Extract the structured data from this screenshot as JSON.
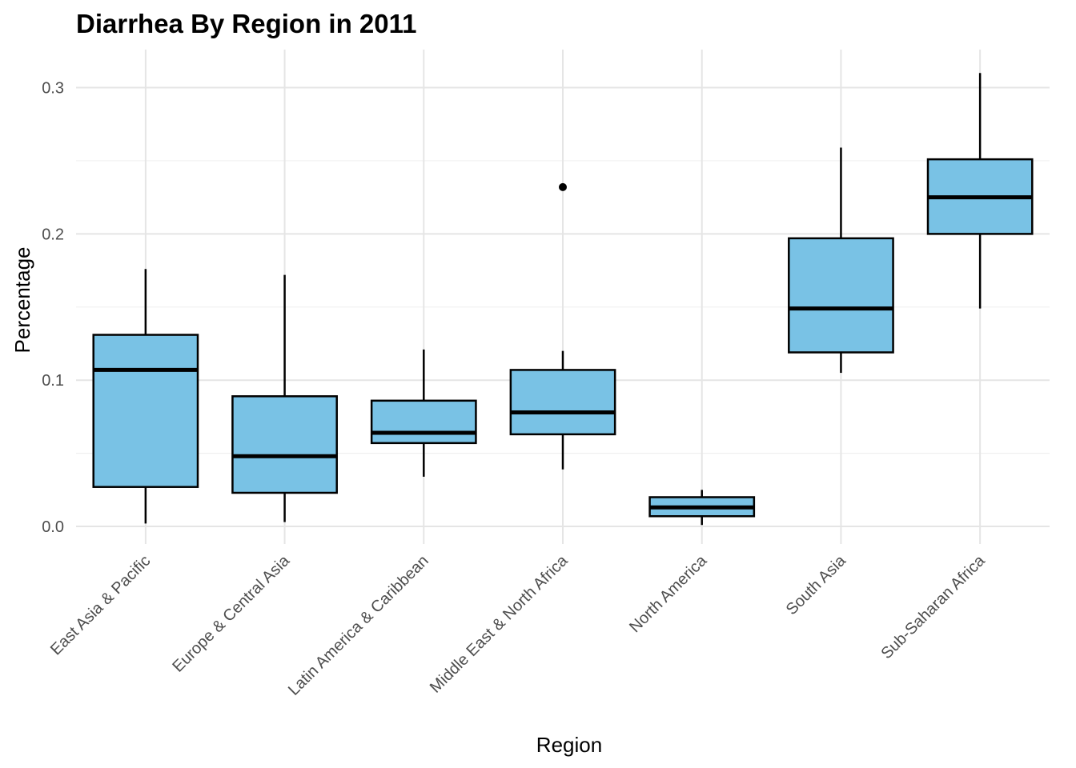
{
  "chart_data": {
    "type": "boxplot",
    "title": "Diarrhea By Region in 2011",
    "xlabel": "Region",
    "ylabel": "Percentage",
    "ylim": [
      -0.012,
      0.326
    ],
    "yticks": [
      0.0,
      0.1,
      0.2,
      0.3
    ],
    "ytick_labels": [
      "0.0",
      "0.1",
      "0.2",
      "0.3"
    ],
    "y_minor_ticks": [
      0.05,
      0.15,
      0.25
    ],
    "grid": true,
    "legend": "none",
    "categories": [
      "East Asia & Pacific",
      "Europe & Central Asia",
      "Latin America & Caribbean",
      "Middle East & North Africa",
      "North America",
      "South Asia",
      "Sub-Saharan Africa"
    ],
    "boxes": [
      {
        "category": "East Asia & Pacific",
        "lower_whisker": 0.002,
        "q1": 0.027,
        "median": 0.107,
        "q3": 0.131,
        "upper_whisker": 0.176,
        "outliers": []
      },
      {
        "category": "Europe & Central Asia",
        "lower_whisker": 0.003,
        "q1": 0.023,
        "median": 0.048,
        "q3": 0.089,
        "upper_whisker": 0.172,
        "outliers": []
      },
      {
        "category": "Latin America & Caribbean",
        "lower_whisker": 0.034,
        "q1": 0.057,
        "median": 0.064,
        "q3": 0.086,
        "upper_whisker": 0.121,
        "outliers": []
      },
      {
        "category": "Middle East & North Africa",
        "lower_whisker": 0.039,
        "q1": 0.063,
        "median": 0.078,
        "q3": 0.107,
        "upper_whisker": 0.12,
        "outliers": [
          0.232
        ]
      },
      {
        "category": "North America",
        "lower_whisker": 0.001,
        "q1": 0.007,
        "median": 0.013,
        "q3": 0.02,
        "upper_whisker": 0.025,
        "outliers": []
      },
      {
        "category": "South Asia",
        "lower_whisker": 0.105,
        "q1": 0.119,
        "median": 0.149,
        "q3": 0.197,
        "upper_whisker": 0.259,
        "outliers": []
      },
      {
        "category": "Sub-Saharan Africa",
        "lower_whisker": 0.149,
        "q1": 0.2,
        "median": 0.225,
        "q3": 0.251,
        "upper_whisker": 0.31,
        "outliers": []
      }
    ],
    "colors": {
      "box_fill": "#79c2e5",
      "box_stroke": "#000000",
      "grid_major": "#e5e5e5",
      "grid_minor": "#f0f0f0",
      "tick_text": "#4d4d4d"
    }
  }
}
